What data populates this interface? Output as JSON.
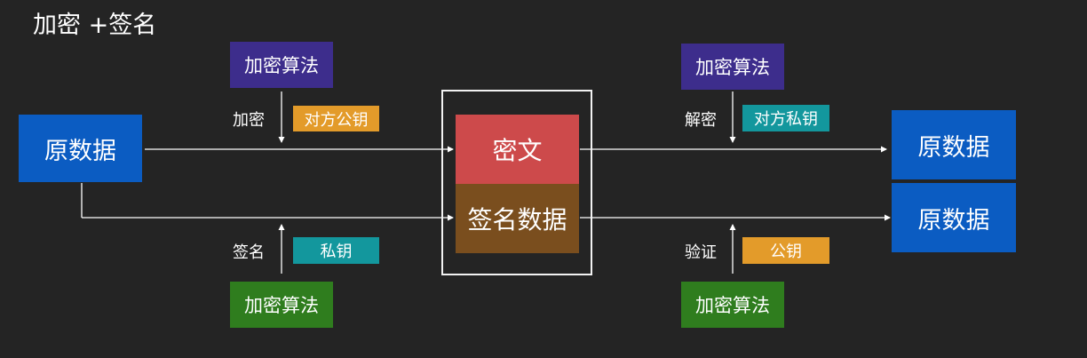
{
  "title": "加密 +签名",
  "top_left": {
    "algorithm": "加密算法",
    "action": "加密",
    "key": "对方公钥"
  },
  "bottom_left": {
    "algorithm": "加密算法",
    "action": "签名",
    "key": "私钥"
  },
  "top_right": {
    "algorithm": "加密算法",
    "action": "解密",
    "key": "对方私钥"
  },
  "bottom_right": {
    "algorithm": "加密算法",
    "action": "验证",
    "key": "公钥"
  },
  "source_data": "原数据",
  "center": {
    "ciphertext": "密文",
    "signature_data": "签名数据"
  },
  "outputs": {
    "top": "原数据",
    "bottom": "原数据"
  },
  "colors": {
    "background": "#242424",
    "algorithm_top": "#3d2d8c",
    "algorithm_bottom": "#2f7d1e",
    "data_box": "#0b5cc2",
    "public_key": "#e39b2a",
    "private_key": "#13979d",
    "ciphertext": "#cd4a4b",
    "signature": "#7a4e1e"
  }
}
